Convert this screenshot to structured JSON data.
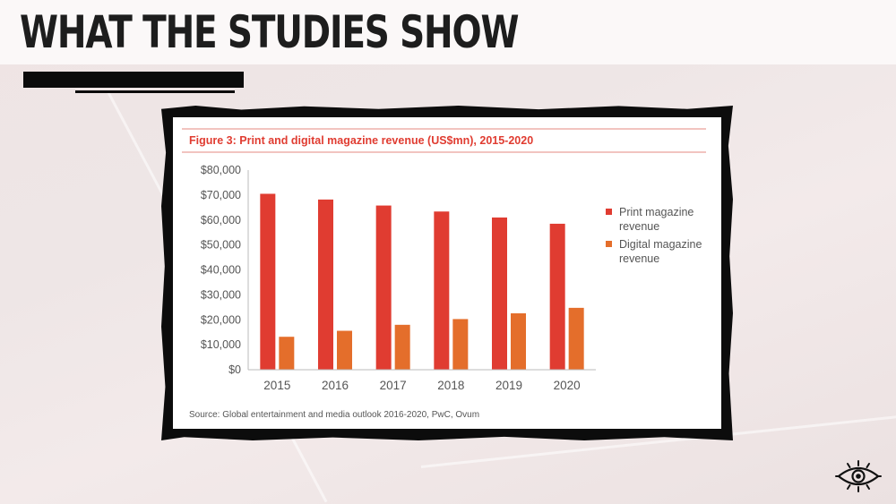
{
  "page": {
    "title": "WHAT THE STUDIES SHOW"
  },
  "chart_data": {
    "type": "bar",
    "title": "Figure 3: Print and digital magazine revenue (US$mn), 2015-2020",
    "categories": [
      "2015",
      "2016",
      "2017",
      "2018",
      "2019",
      "2020"
    ],
    "series": [
      {
        "name": "Print magazine revenue",
        "values": [
          70500,
          68200,
          65800,
          63400,
          61000,
          58500
        ],
        "color": "#e03c31"
      },
      {
        "name": "Digital magazine revenue",
        "values": [
          13200,
          15600,
          18000,
          20300,
          22600,
          24800
        ],
        "color": "#e46e2b"
      }
    ],
    "legend_lines": [
      [
        "Print magazine",
        "revenue"
      ],
      [
        "Digital magazine",
        "revenue"
      ]
    ],
    "ylim": [
      0,
      80000
    ],
    "yticks": [
      0,
      10000,
      20000,
      30000,
      40000,
      50000,
      60000,
      70000,
      80000
    ],
    "ytick_labels": [
      "$0",
      "$10,000",
      "$20,000",
      "$30,000",
      "$40,000",
      "$50,000",
      "$60,000",
      "$70,000",
      "$80,000"
    ],
    "grid": false,
    "legend_position": "right",
    "source": "Source: Global entertainment and media outlook 2016-2020, PwC, Ovum",
    "title_color": "#e03c31"
  },
  "icons": {
    "corner": "eye-icon"
  }
}
